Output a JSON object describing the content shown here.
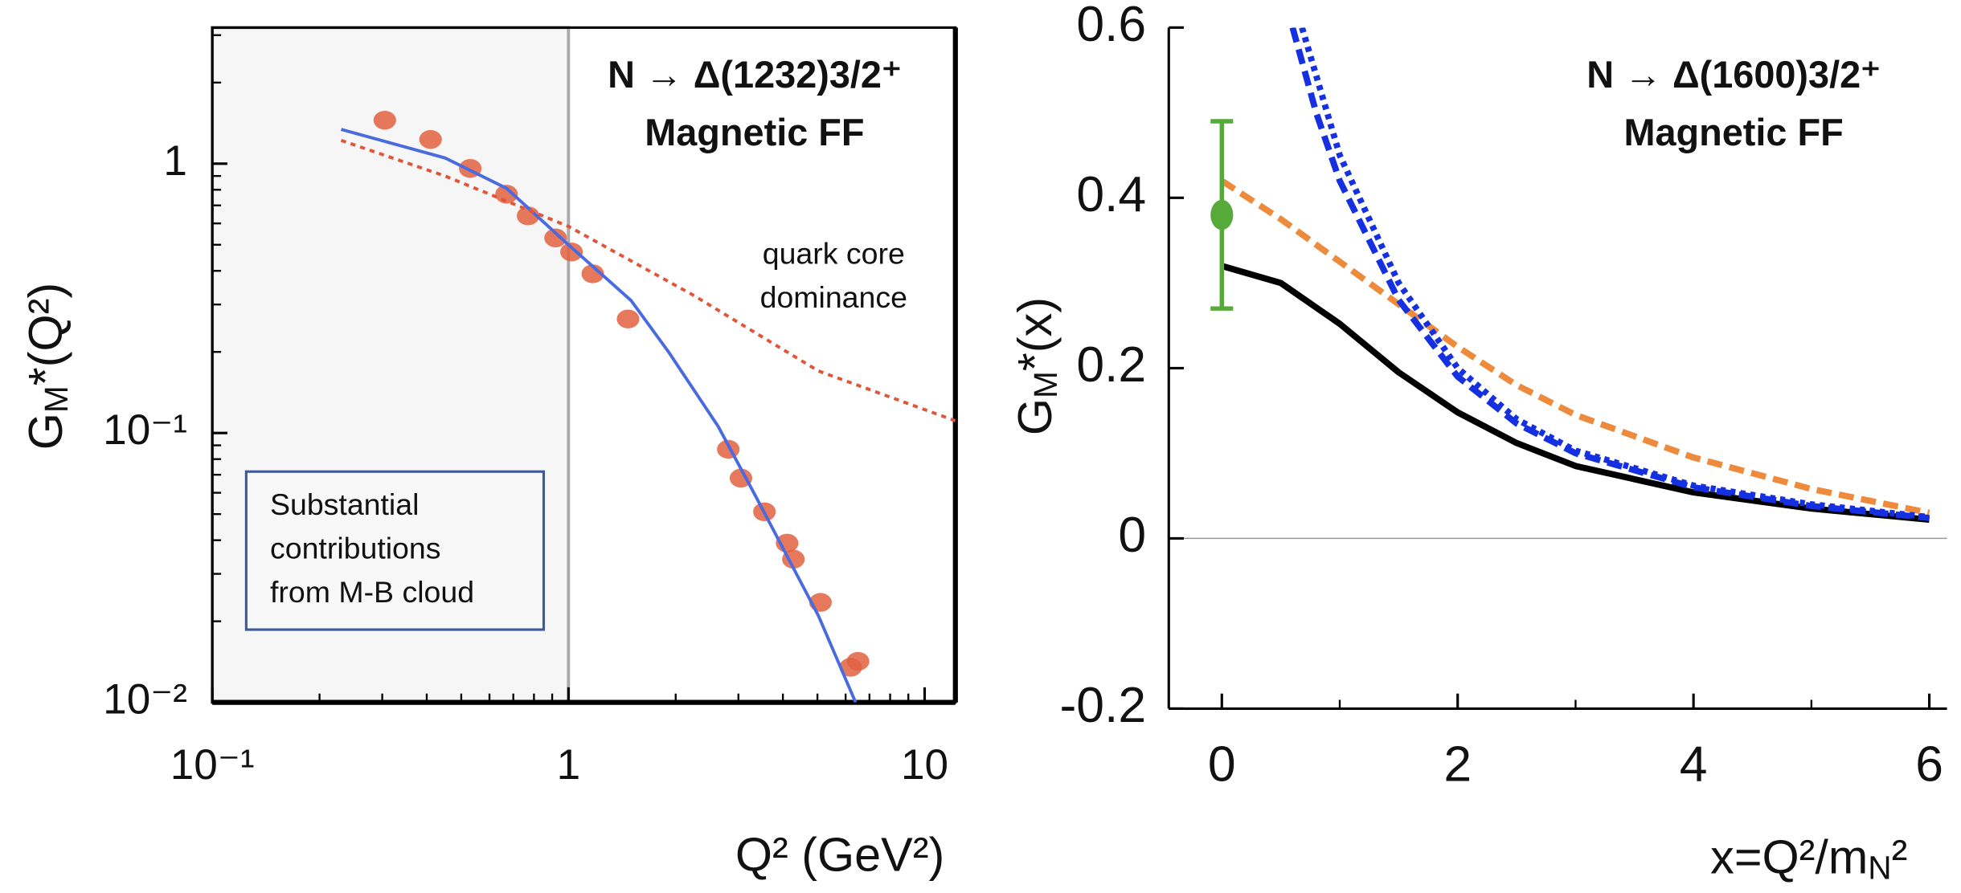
{
  "chart_data": [
    {
      "type": "scatter",
      "title": "N → Δ(1232)3/2⁺",
      "subtitle": "Magnetic FF",
      "xlabel": [
        "Q² (GeV²)"
      ],
      "ylabel": [
        "G",
        "M",
        "*(Q²)"
      ],
      "annotations": [
        [
          "quark core",
          "dominance"
        ],
        [
          "Substantial",
          "contributions",
          "from M-B cloud"
        ]
      ],
      "shaded_region": [
        0.1,
        1
      ],
      "xlog": true,
      "ylog": true,
      "xlim": [
        0.1,
        12.2
      ],
      "ylim": [
        0.01,
        3.2
      ],
      "xticks": [
        {
          "value": 0.1,
          "label": "10⁻¹"
        },
        1,
        10
      ],
      "yticks": [
        {
          "value": 0.01,
          "label": "10⁻²"
        },
        {
          "value": 0.1,
          "label": "10⁻¹"
        },
        1
      ],
      "xminor": [
        0.2,
        0.3,
        0.4,
        0.5,
        0.6,
        0.7,
        0.8,
        0.9,
        2,
        3,
        4,
        5,
        6,
        7,
        8,
        9
      ],
      "yminor": [
        0.02,
        0.03,
        0.04,
        0.05,
        0.06,
        0.07,
        0.08,
        0.09,
        0.2,
        0.3,
        0.4,
        0.5,
        0.6,
        0.7,
        0.8,
        0.9,
        2,
        3
      ],
      "series": [
        {
          "kind": "scatter",
          "color": "#e2603f",
          "x": [
            0.305,
            0.41,
            0.53,
            0.67,
            0.77,
            0.92,
            1.02,
            1.17,
            1.47,
            2.81,
            3.05,
            3.55,
            4.11,
            4.28,
            5.1,
            6.2,
            6.5
          ],
          "values": [
            1.45,
            1.23,
            0.96,
            0.77,
            0.64,
            0.53,
            0.47,
            0.39,
            0.265,
            0.087,
            0.068,
            0.051,
            0.039,
            0.034,
            0.0235,
            0.0135,
            0.0142
          ]
        },
        {
          "kind": "line",
          "style": "solid",
          "color": "#4a6be0",
          "x": [
            0.23,
            0.45,
            0.67,
            1,
            1.5,
            1.91,
            2.63,
            3.36,
            5.03,
            6.4
          ],
          "values": [
            1.34,
            1.05,
            0.81,
            0.5,
            0.31,
            0.2,
            0.106,
            0.058,
            0.021,
            0.01
          ]
        },
        {
          "kind": "line",
          "style": "dotted",
          "color": "#e0553a",
          "x": [
            0.23,
            0.45,
            1,
            2.24,
            5.03,
            12.2
          ],
          "values": [
            1.22,
            0.9,
            0.585,
            0.325,
            0.17,
            0.111
          ]
        }
      ]
    },
    {
      "type": "line",
      "title": "N → Δ(1600)3/2⁺",
      "subtitle": "Magnetic FF",
      "xlabel": [
        "x=Q²/m",
        "N",
        "²"
      ],
      "ylabel": [
        "G",
        "M",
        "*(x)"
      ],
      "zero_line": true,
      "xlim": [
        -0.45,
        6.15
      ],
      "ylim": [
        -0.2,
        0.6
      ],
      "xticks": [
        0,
        2,
        4,
        6
      ],
      "xminor": [
        1,
        3,
        5
      ],
      "yticks": [
        -0.2,
        0,
        0.2,
        0.4,
        0.6
      ],
      "series": [
        {
          "kind": "line",
          "style": "solid",
          "color": "#000000",
          "x": [
            0,
            0.5,
            1,
            1.5,
            2,
            2.5,
            3,
            4,
            5,
            6
          ],
          "values": [
            0.32,
            0.3,
            0.252,
            0.195,
            0.148,
            0.112,
            0.085,
            0.054,
            0.035,
            0.022
          ]
        },
        {
          "kind": "line",
          "style": "dashed",
          "color": "#ee8a3c",
          "x": [
            0,
            0.5,
            1,
            1.5,
            2,
            2.5,
            3,
            4,
            5,
            6
          ],
          "values": [
            0.42,
            0.375,
            0.325,
            0.275,
            0.225,
            0.18,
            0.145,
            0.095,
            0.058,
            0.03
          ]
        },
        {
          "kind": "line",
          "style": "dashed",
          "color": "#1530e0",
          "x": [
            0.6,
            0.8,
            1,
            1.5,
            2,
            2.5,
            3,
            4,
            5,
            6
          ],
          "values": [
            0.6,
            0.5,
            0.42,
            0.28,
            0.19,
            0.135,
            0.1,
            0.06,
            0.038,
            0.024
          ]
        },
        {
          "kind": "line",
          "style": "dotted",
          "color": "#1530e0",
          "x": [
            0.68,
            1,
            1.5,
            2,
            2.5,
            3,
            4,
            5,
            6
          ],
          "values": [
            0.6,
            0.45,
            0.3,
            0.2,
            0.14,
            0.103,
            0.062,
            0.04,
            0.025
          ]
        },
        {
          "kind": "errorbar",
          "color": "#55aa3a",
          "x": [
            0
          ],
          "values": [
            0.38
          ],
          "errors": [
            0.11
          ]
        }
      ]
    }
  ]
}
